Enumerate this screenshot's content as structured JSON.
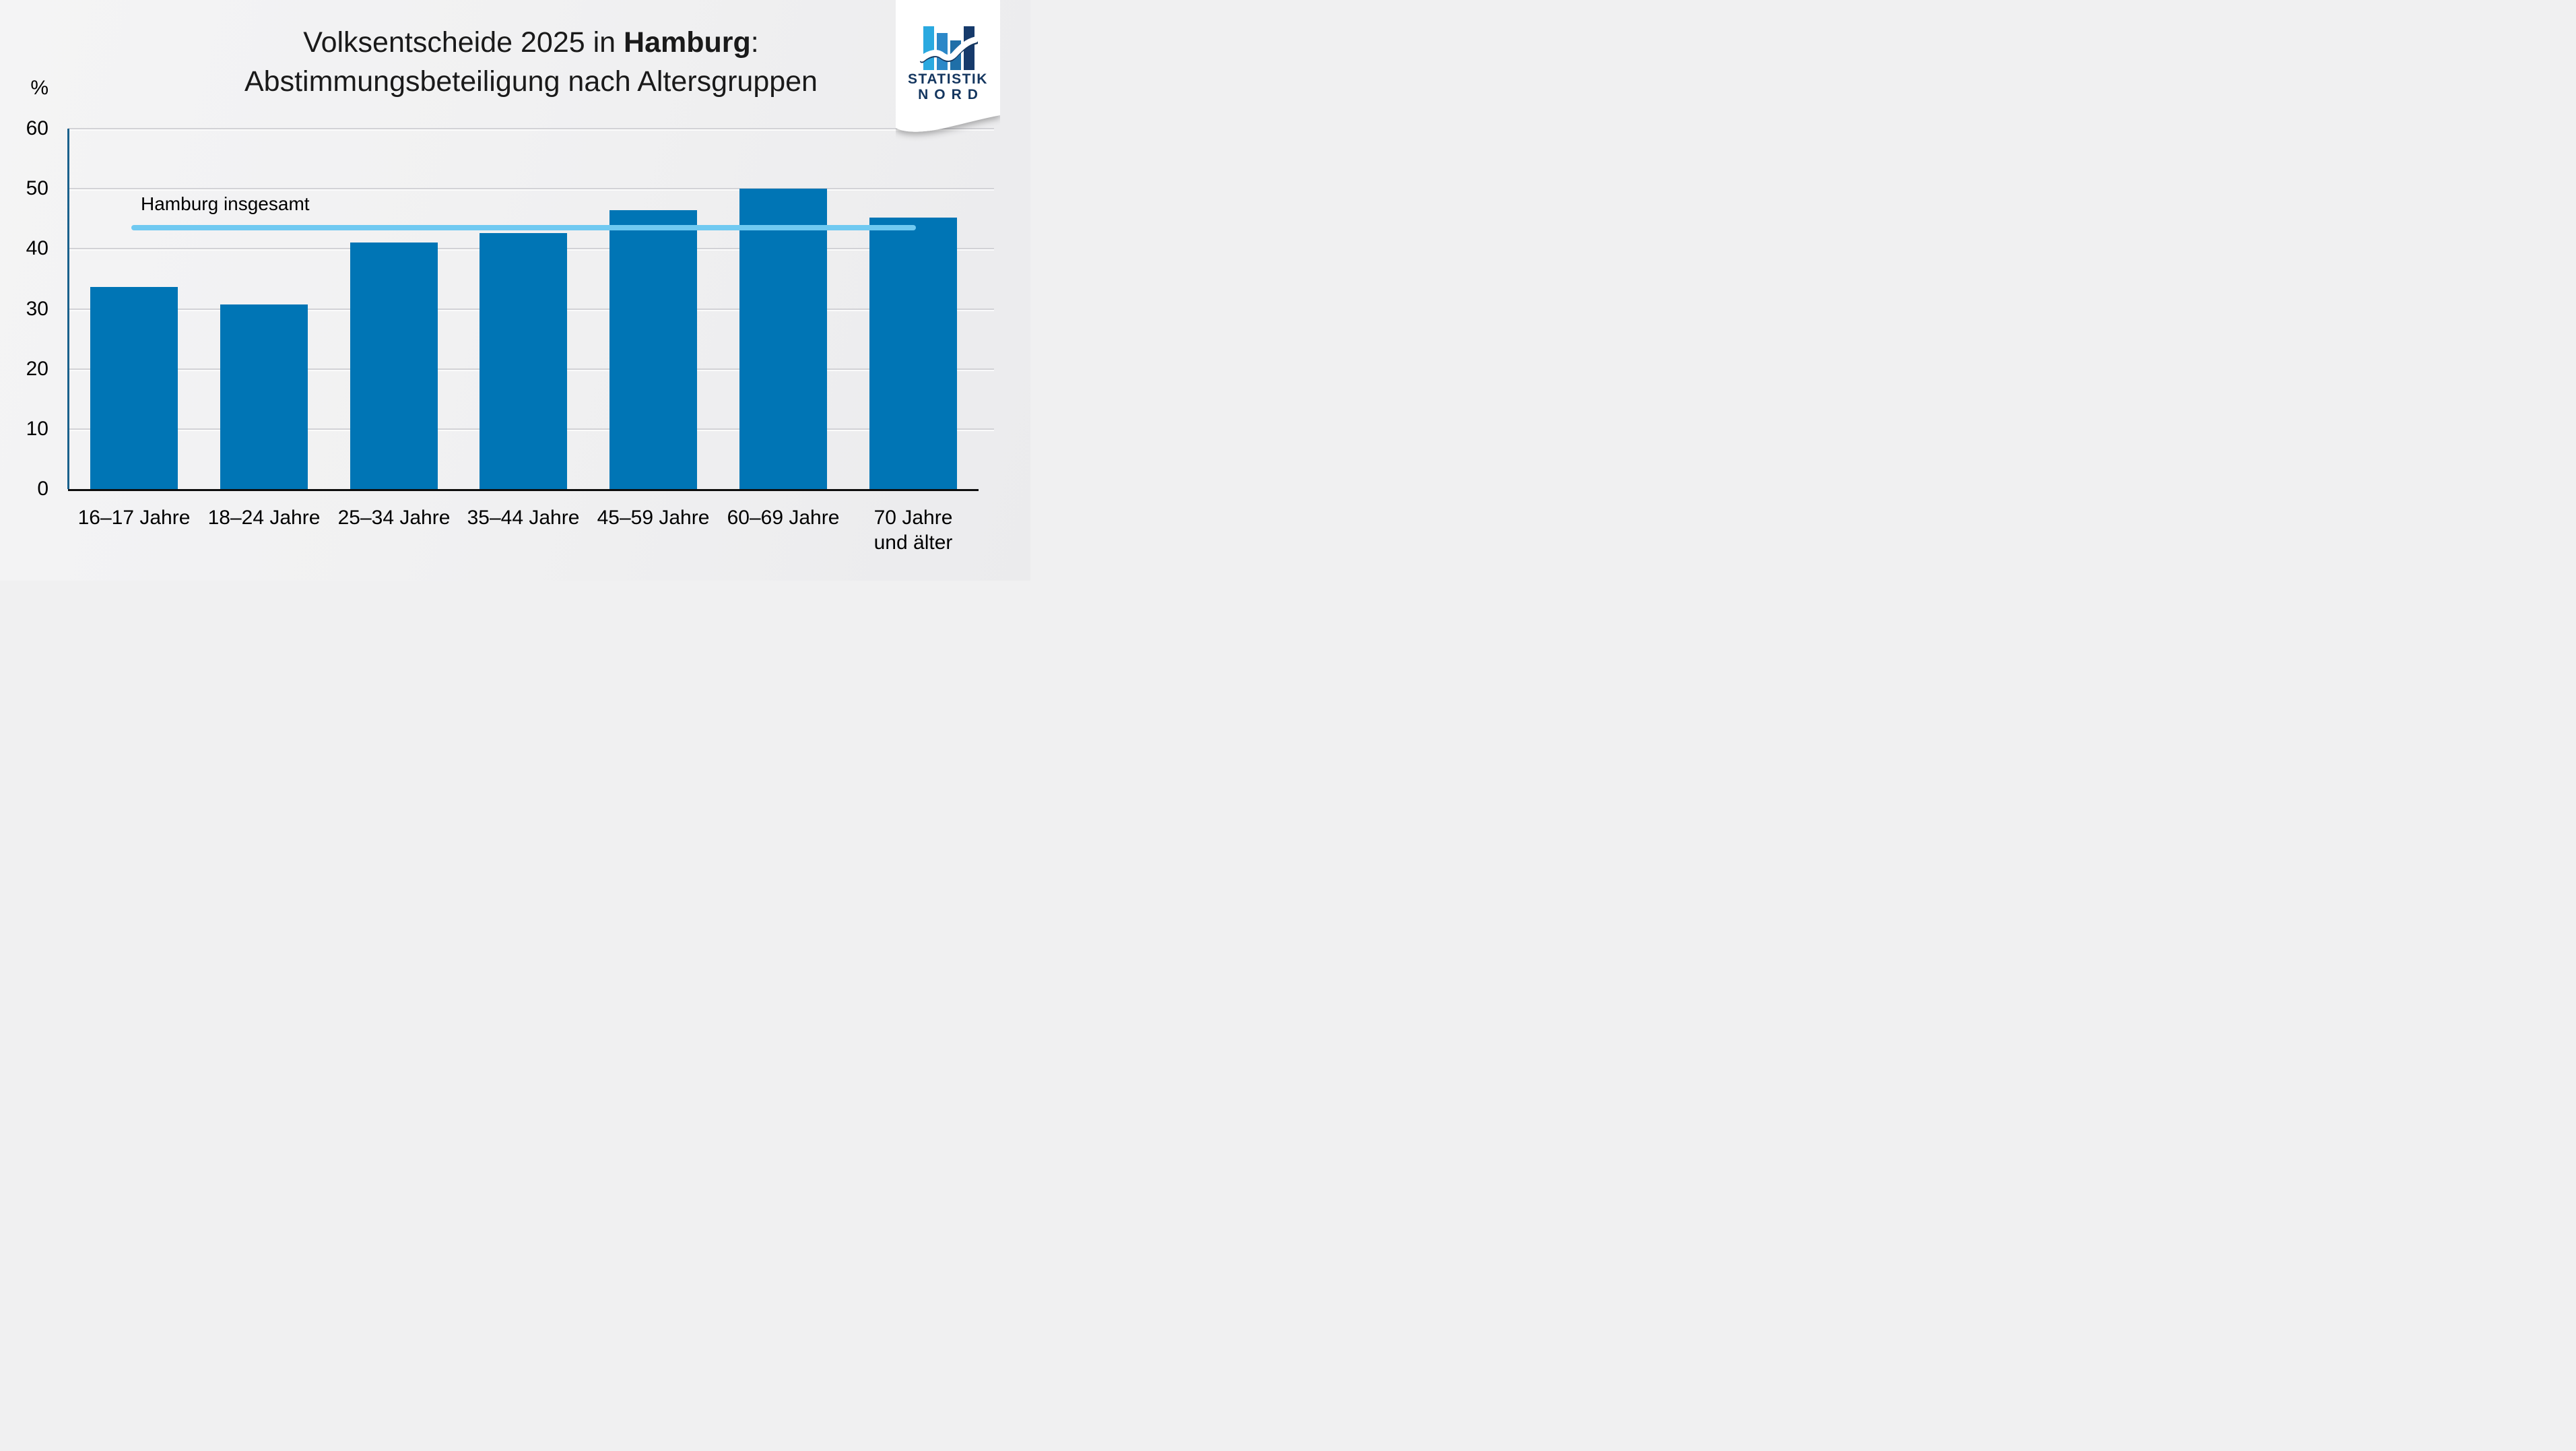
{
  "header": {
    "title_line1_prefix": "Volksentscheide 2025 in ",
    "title_line1_bold": "Hamburg",
    "title_line1_suffix": ":",
    "title_line2": "Abstimmungsbeteiligung nach Altersgruppen"
  },
  "chart_data": {
    "type": "bar",
    "title": "Volksentscheide 2025 in Hamburg: Abstimmungsbeteiligung nach Altersgruppen",
    "unit_label": "%",
    "categories": [
      "16–17 Jahre",
      "18–24 Jahre",
      "25–34 Jahre",
      "35–44 Jahre",
      "45–59 Jahre",
      "60–69 Jahre",
      "70 Jahre und älter"
    ],
    "category_label_lines": [
      [
        "16–17 Jahre"
      ],
      [
        "18–24 Jahre"
      ],
      [
        "25–34 Jahre"
      ],
      [
        "35–44 Jahre"
      ],
      [
        "45–59 Jahre"
      ],
      [
        "60–69 Jahre"
      ],
      [
        "70 Jahre",
        "und älter"
      ]
    ],
    "values": [
      33.7,
      30.7,
      41.0,
      42.6,
      46.4,
      50.0,
      45.2
    ],
    "ylim": [
      0,
      60
    ],
    "yticks": [
      60,
      50,
      40,
      30,
      20,
      10,
      0
    ],
    "grid": true,
    "legend": "none",
    "bar_color": "#0075B5",
    "axis_color": "#1A618C",
    "reference_line": {
      "label": "Hamburg insgesamt",
      "value": 43.5,
      "color": "#70C9F1"
    }
  },
  "logo": {
    "text_line1": "STATISTIK",
    "text_line2": "NORD",
    "bar_colors": [
      "#2AA9E0",
      "#2C88C8",
      "#1F6FA8",
      "#163A6B"
    ],
    "text_color": "#14365F"
  }
}
